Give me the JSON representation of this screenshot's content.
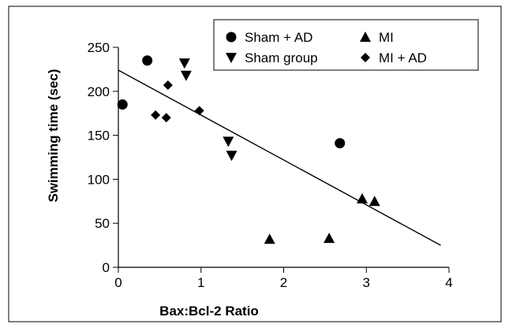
{
  "chart_data": {
    "type": "scatter",
    "xlabel": "Bax:Bcl-2 Ratio",
    "ylabel": "Swimming time (sec)",
    "xlim": [
      0,
      4
    ],
    "ylim": [
      0,
      250
    ],
    "xticks": [
      0,
      1,
      2,
      3,
      4
    ],
    "yticks": [
      0,
      50,
      100,
      150,
      200,
      250
    ],
    "grid": false,
    "legend_position": "top-right",
    "series": [
      {
        "name": "Sham + AD",
        "marker": "circle",
        "points": [
          [
            0.05,
            185
          ],
          [
            0.35,
            235
          ],
          [
            2.68,
            141
          ]
        ]
      },
      {
        "name": "MI",
        "marker": "triangle-up",
        "points": [
          [
            1.83,
            32
          ],
          [
            2.55,
            33
          ],
          [
            2.95,
            78
          ],
          [
            3.1,
            75
          ]
        ]
      },
      {
        "name": "Sham group",
        "marker": "triangle-down",
        "points": [
          [
            0.8,
            232
          ],
          [
            0.82,
            218
          ],
          [
            1.33,
            143
          ],
          [
            1.37,
            127
          ]
        ]
      },
      {
        "name": "MI + AD",
        "marker": "diamond",
        "points": [
          [
            0.45,
            173
          ],
          [
            0.58,
            170
          ],
          [
            0.6,
            207
          ],
          [
            0.98,
            178
          ]
        ]
      }
    ],
    "trendline": {
      "x1": 0,
      "y1": 224,
      "x2": 3.9,
      "y2": 25
    },
    "colors": {
      "marker": "#000000",
      "line": "#000000"
    }
  }
}
